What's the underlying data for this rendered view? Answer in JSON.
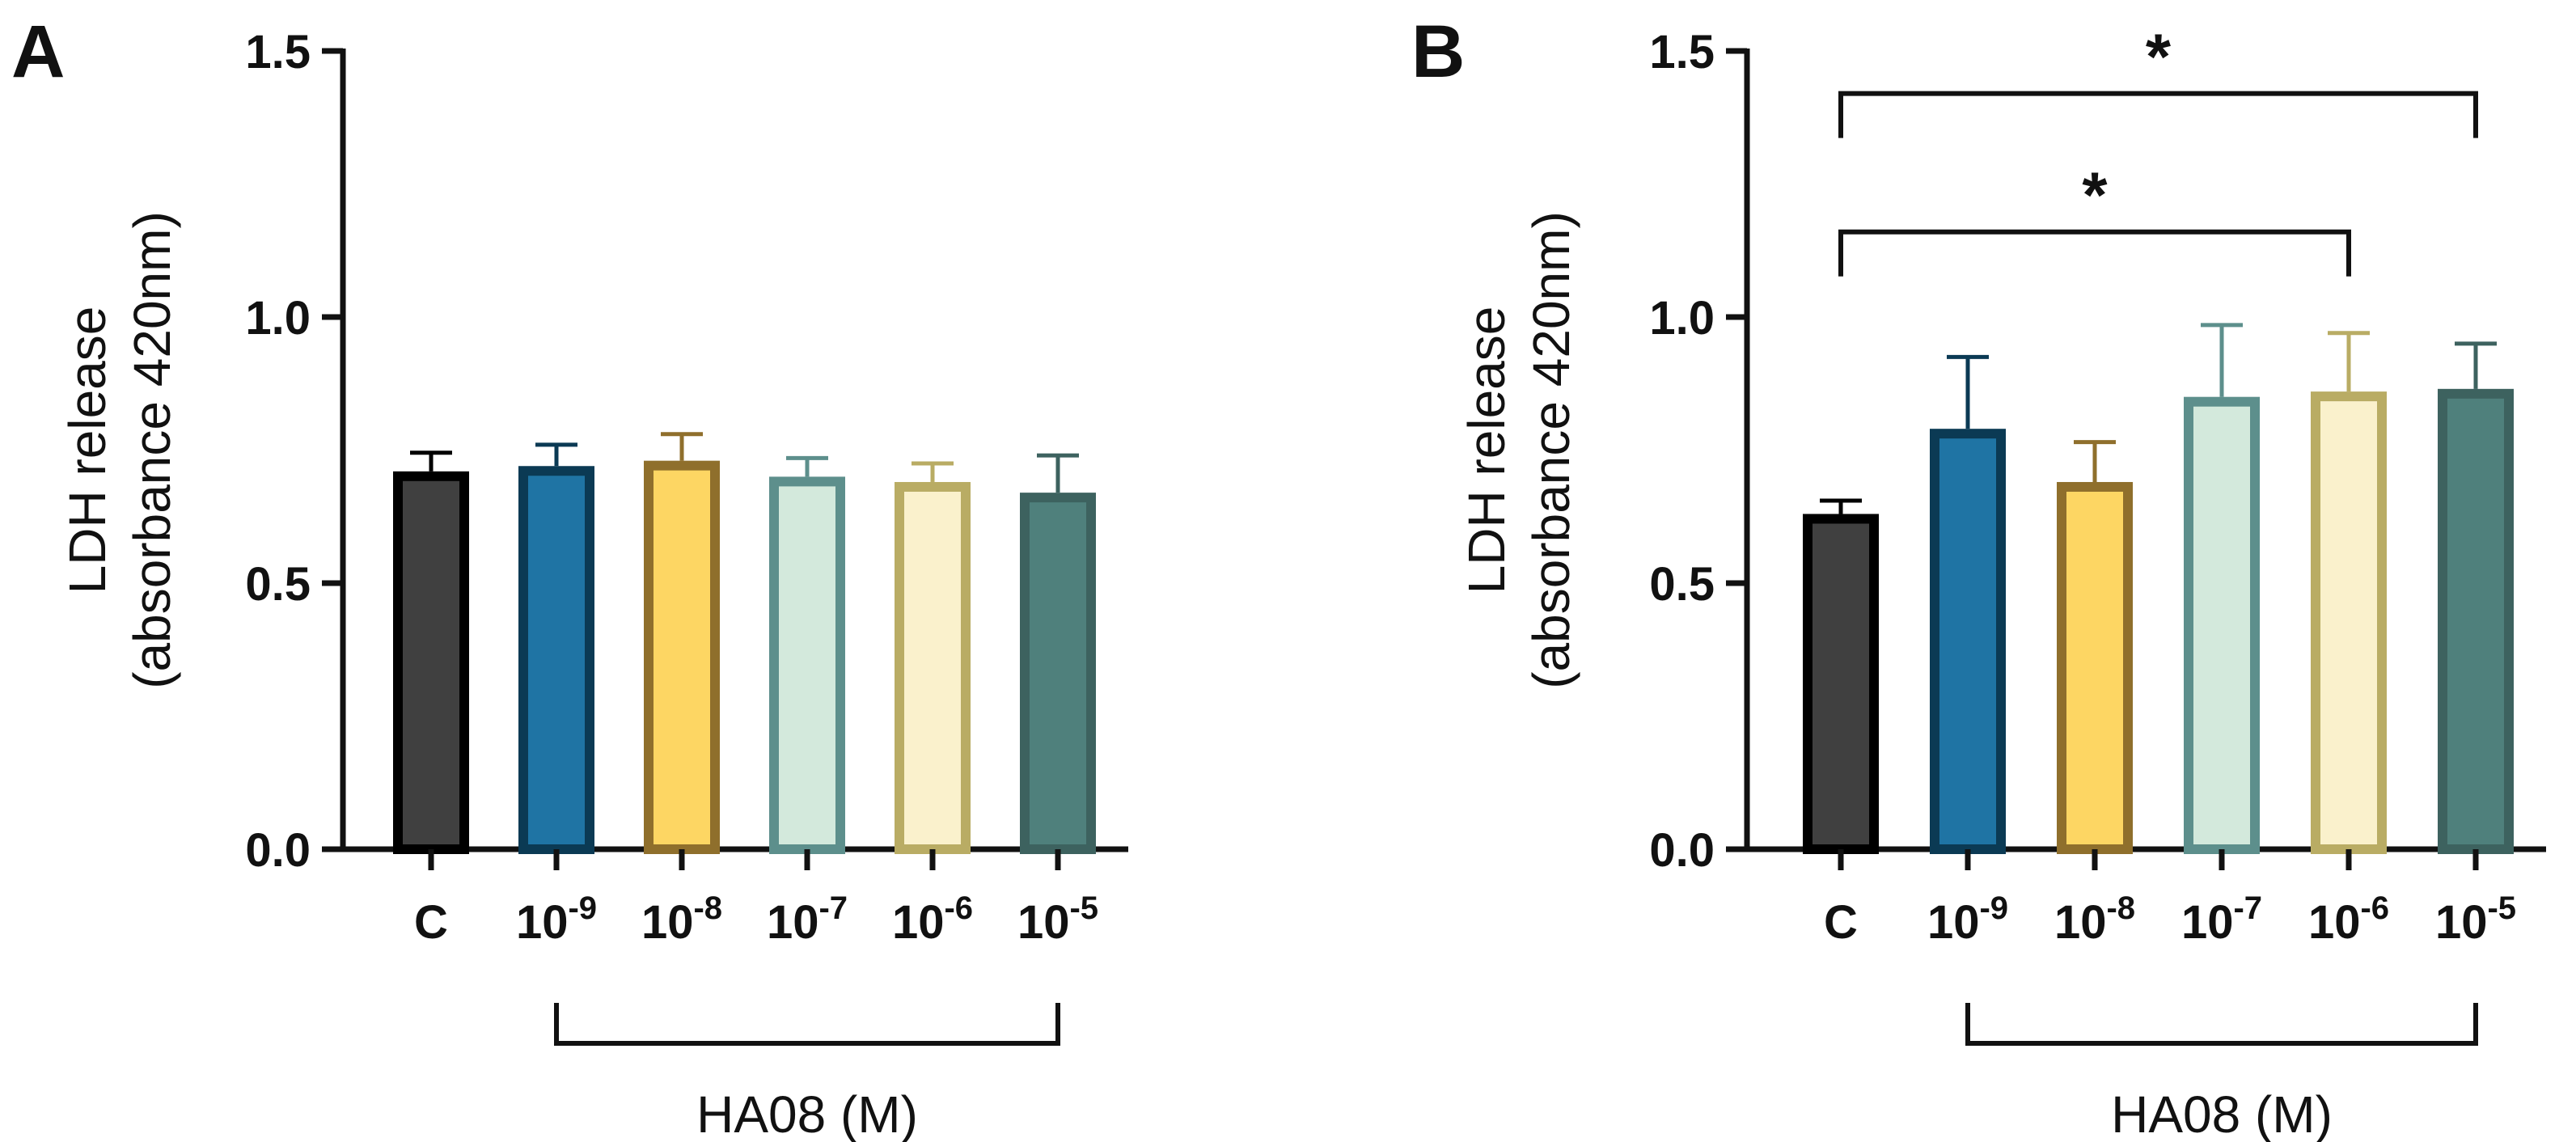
{
  "chart_data": [
    {
      "panel": "A",
      "type": "bar",
      "ylabel_line1": "LDH release",
      "ylabel_line2": "(absorbance 420nm)",
      "ylim": [
        0,
        1.5
      ],
      "ytick_labels": [
        "0.0",
        "0.5",
        "1.0",
        "1.5"
      ],
      "ytick_values": [
        0,
        0.5,
        1.0,
        1.5
      ],
      "categories": [
        {
          "base": "C",
          "exp": ""
        },
        {
          "base": "10",
          "exp": "-9"
        },
        {
          "base": "10",
          "exp": "-8"
        },
        {
          "base": "10",
          "exp": "-7"
        },
        {
          "base": "10",
          "exp": "-6"
        },
        {
          "base": "10",
          "exp": "-5"
        }
      ],
      "values": [
        0.71,
        0.72,
        0.73,
        0.7,
        0.69,
        0.67
      ],
      "errors": [
        0.035,
        0.04,
        0.05,
        0.035,
        0.035,
        0.07
      ],
      "fill_colors": [
        "#404040",
        "#1f74a4",
        "#fdd663",
        "#d3e9dc",
        "#faf1cc",
        "#4f807c"
      ],
      "edge_colors": [
        "#000000",
        "#0b3a54",
        "#8f6f2c",
        "#5d8f8c",
        "#b9ac64",
        "#3d625f"
      ],
      "group_label": "HA08 (M)",
      "group_span": [
        1,
        5
      ],
      "significance": []
    },
    {
      "panel": "B",
      "type": "bar",
      "ylabel_line1": "LDH release",
      "ylabel_line2": "(absorbance 420nm)",
      "ylim": [
        0,
        1.5
      ],
      "ytick_labels": [
        "0.0",
        "0.5",
        "1.0",
        "1.5"
      ],
      "ytick_values": [
        0,
        0.5,
        1.0,
        1.5
      ],
      "categories": [
        {
          "base": "C",
          "exp": ""
        },
        {
          "base": "10",
          "exp": "-9"
        },
        {
          "base": "10",
          "exp": "-8"
        },
        {
          "base": "10",
          "exp": "-7"
        },
        {
          "base": "10",
          "exp": "-6"
        },
        {
          "base": "10",
          "exp": "-5"
        }
      ],
      "values": [
        0.63,
        0.79,
        0.69,
        0.85,
        0.86,
        0.865
      ],
      "errors": [
        0.025,
        0.135,
        0.075,
        0.135,
        0.11,
        0.085
      ],
      "fill_colors": [
        "#404040",
        "#1f74a4",
        "#fdd663",
        "#d3e9dc",
        "#faf1cc",
        "#4f807c"
      ],
      "edge_colors": [
        "#000000",
        "#0b3a54",
        "#8f6f2c",
        "#5d8f8c",
        "#b9ac64",
        "#3d625f"
      ],
      "group_label": "HA08 (M)",
      "group_span": [
        1,
        5
      ],
      "significance": [
        {
          "from": 0,
          "to": 5,
          "label": "*",
          "level": 1.42
        },
        {
          "from": 0,
          "to": 4,
          "label": "*",
          "level": 1.16
        }
      ]
    }
  ]
}
